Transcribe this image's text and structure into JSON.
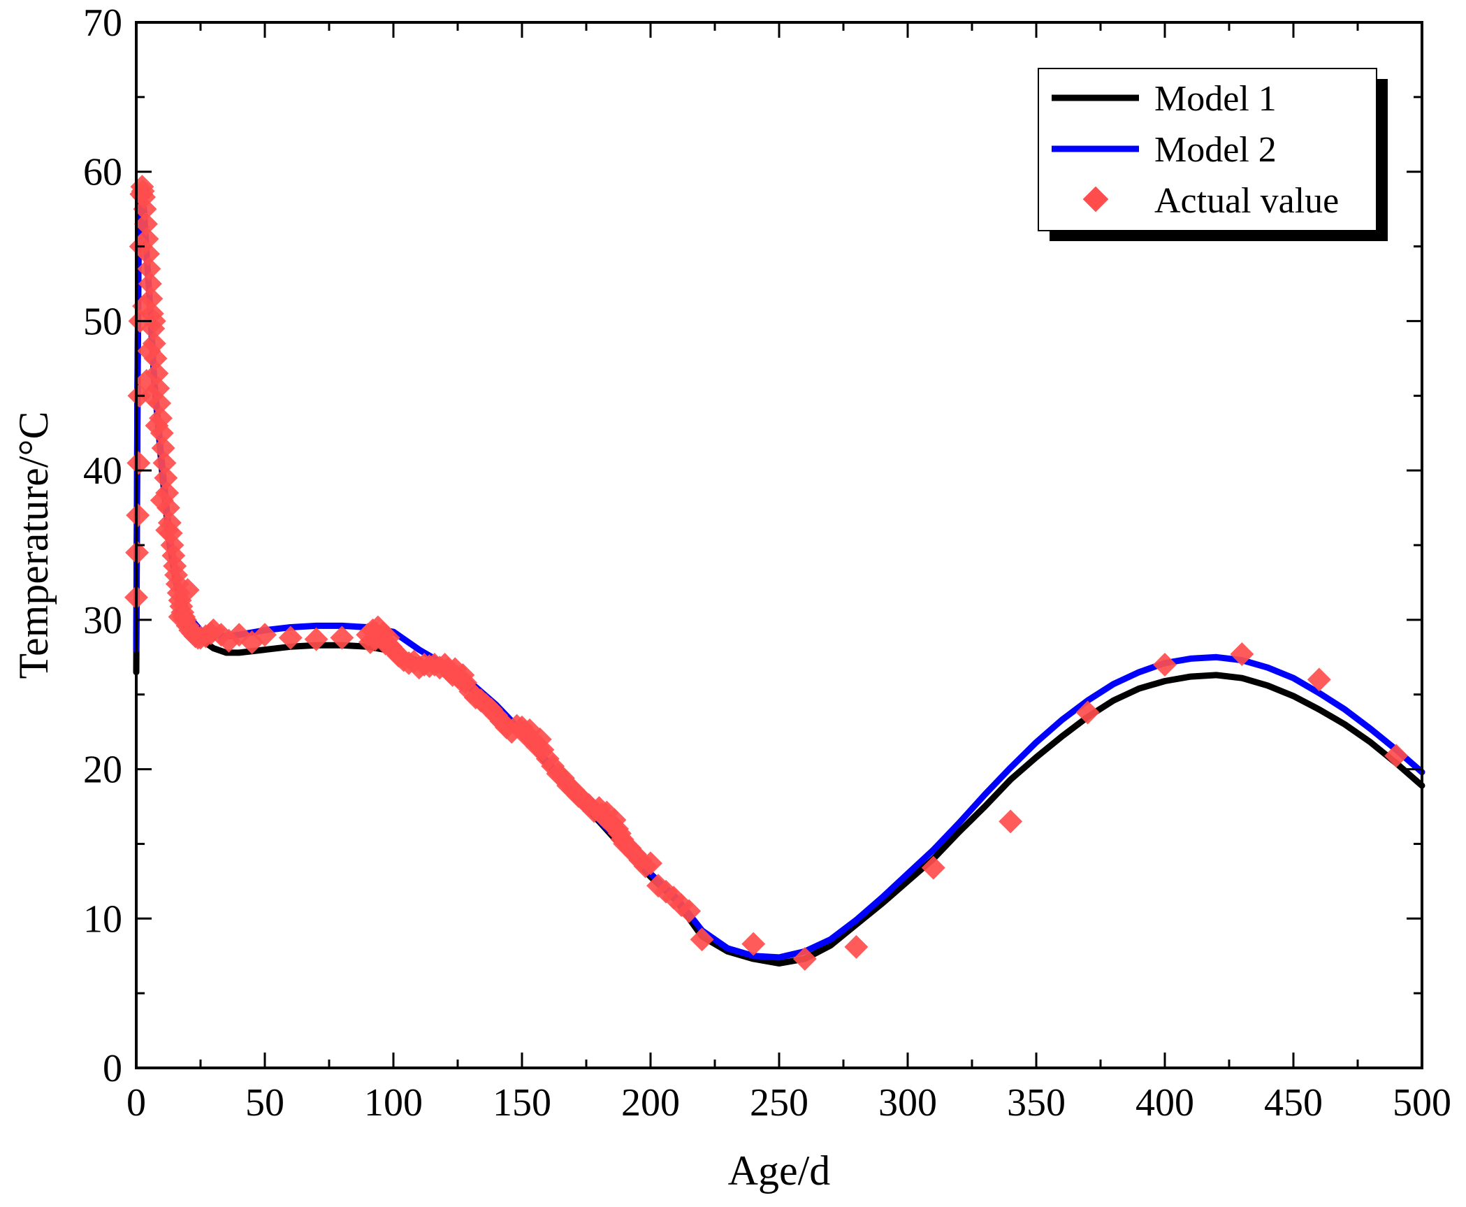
{
  "chart_data": {
    "type": "line",
    "title": "",
    "xlabel": "Age/d",
    "ylabel": "Temperature/°C",
    "xlim": [
      0,
      500
    ],
    "ylim": [
      0,
      70
    ],
    "x_ticks": [
      0,
      50,
      100,
      150,
      200,
      250,
      300,
      350,
      400,
      450,
      500
    ],
    "x_tick_labels": [
      "0",
      "50",
      "100",
      "150",
      "200",
      "250",
      "300",
      "350",
      "400",
      "450",
      "500"
    ],
    "y_ticks": [
      0,
      10,
      20,
      30,
      40,
      50,
      60,
      70
    ],
    "y_tick_labels": [
      "0",
      "10",
      "20",
      "30",
      "40",
      "50",
      "60",
      "70"
    ],
    "grid": false,
    "legend_position": "top-right",
    "series": [
      {
        "name": "Model 1",
        "kind": "line",
        "color": "#000000",
        "points": [
          [
            0,
            26.5
          ],
          [
            0.5,
            45
          ],
          [
            1,
            57
          ],
          [
            2,
            58.5
          ],
          [
            3,
            57
          ],
          [
            5,
            52
          ],
          [
            7,
            46
          ],
          [
            10,
            40
          ],
          [
            13,
            35
          ],
          [
            16,
            32
          ],
          [
            20,
            30
          ],
          [
            25,
            28.7
          ],
          [
            30,
            28.1
          ],
          [
            35,
            27.8
          ],
          [
            40,
            27.8
          ],
          [
            50,
            28
          ],
          [
            60,
            28.2
          ],
          [
            70,
            28.3
          ],
          [
            80,
            28.3
          ],
          [
            90,
            28.2
          ],
          [
            100,
            27.9
          ],
          [
            110,
            27.2
          ],
          [
            120,
            26.5
          ],
          [
            125,
            26.1
          ],
          [
            130,
            25.4
          ],
          [
            140,
            23.8
          ],
          [
            150,
            22.3
          ],
          [
            160,
            20.3
          ],
          [
            170,
            18.3
          ],
          [
            180,
            16.5
          ],
          [
            190,
            14.6
          ],
          [
            200,
            12.8
          ],
          [
            210,
            11.2
          ],
          [
            220,
            8.8
          ],
          [
            230,
            7.8
          ],
          [
            240,
            7.3
          ],
          [
            250,
            7.0
          ],
          [
            260,
            7.3
          ],
          [
            270,
            8.2
          ],
          [
            280,
            9.6
          ],
          [
            290,
            11
          ],
          [
            300,
            12.5
          ],
          [
            310,
            14
          ],
          [
            320,
            15.8
          ],
          [
            330,
            17.5
          ],
          [
            340,
            19.3
          ],
          [
            350,
            20.8
          ],
          [
            360,
            22.2
          ],
          [
            370,
            23.5
          ],
          [
            380,
            24.6
          ],
          [
            390,
            25.4
          ],
          [
            400,
            25.9
          ],
          [
            410,
            26.2
          ],
          [
            420,
            26.3
          ],
          [
            430,
            26.1
          ],
          [
            440,
            25.6
          ],
          [
            450,
            24.9
          ],
          [
            460,
            24
          ],
          [
            470,
            23
          ],
          [
            480,
            21.8
          ],
          [
            490,
            20.4
          ],
          [
            500,
            18.9
          ]
        ]
      },
      {
        "name": "Model 2",
        "kind": "line",
        "color": "#0000ff",
        "points": [
          [
            0,
            28
          ],
          [
            0.5,
            46
          ],
          [
            1,
            57.5
          ],
          [
            2,
            59
          ],
          [
            3,
            57.5
          ],
          [
            5,
            52
          ],
          [
            7,
            46
          ],
          [
            10,
            40.5
          ],
          [
            13,
            35.5
          ],
          [
            16,
            32.5
          ],
          [
            20,
            30.3
          ],
          [
            25,
            29.3
          ],
          [
            30,
            29.0
          ],
          [
            35,
            28.9
          ],
          [
            40,
            29
          ],
          [
            50,
            29.3
          ],
          [
            60,
            29.5
          ],
          [
            70,
            29.6
          ],
          [
            80,
            29.6
          ],
          [
            90,
            29.5
          ],
          [
            100,
            29.2
          ],
          [
            110,
            28
          ],
          [
            120,
            27
          ],
          [
            125,
            26.5
          ],
          [
            130,
            25.8
          ],
          [
            140,
            24.3
          ],
          [
            150,
            22.5
          ],
          [
            160,
            20.5
          ],
          [
            170,
            18.5
          ],
          [
            180,
            16.6
          ],
          [
            190,
            14.8
          ],
          [
            200,
            13
          ],
          [
            210,
            11.4
          ],
          [
            220,
            9.2
          ],
          [
            230,
            8.0
          ],
          [
            240,
            7.5
          ],
          [
            250,
            7.4
          ],
          [
            260,
            7.8
          ],
          [
            270,
            8.6
          ],
          [
            280,
            9.9
          ],
          [
            290,
            11.4
          ],
          [
            300,
            13.0
          ],
          [
            310,
            14.6
          ],
          [
            320,
            16.4
          ],
          [
            330,
            18.3
          ],
          [
            340,
            20.1
          ],
          [
            350,
            21.8
          ],
          [
            360,
            23.3
          ],
          [
            370,
            24.6
          ],
          [
            380,
            25.7
          ],
          [
            390,
            26.5
          ],
          [
            400,
            27.1
          ],
          [
            410,
            27.4
          ],
          [
            420,
            27.5
          ],
          [
            430,
            27.3
          ],
          [
            440,
            26.8
          ],
          [
            450,
            26.1
          ],
          [
            460,
            25.1
          ],
          [
            470,
            24
          ],
          [
            480,
            22.7
          ],
          [
            490,
            21.3
          ],
          [
            500,
            19.8
          ]
        ]
      },
      {
        "name": "Actual value",
        "kind": "scatter",
        "color": "#ff4d4d",
        "points": [
          [
            0,
            31.5
          ],
          [
            0.3,
            34.5
          ],
          [
            0.6,
            37
          ],
          [
            0.9,
            40.5
          ],
          [
            1.2,
            45
          ],
          [
            1.5,
            50
          ],
          [
            1.8,
            55
          ],
          [
            2,
            58.5
          ],
          [
            2.3,
            59
          ],
          [
            2.6,
            58.7
          ],
          [
            3,
            58.3
          ],
          [
            3.4,
            57.5
          ],
          [
            3.8,
            56.5
          ],
          [
            4.2,
            55.5
          ],
          [
            4.6,
            54.5
          ],
          [
            5,
            53.5
          ],
          [
            5.4,
            52.5
          ],
          [
            5.8,
            51.5
          ],
          [
            6.2,
            50.5
          ],
          [
            6.6,
            49.5
          ],
          [
            7,
            48.5
          ],
          [
            7.5,
            47.5
          ],
          [
            8,
            46.5
          ],
          [
            8.5,
            45.5
          ],
          [
            9,
            44.5
          ],
          [
            9.5,
            43.5
          ],
          [
            10,
            42.5
          ],
          [
            10.5,
            41.5
          ],
          [
            11,
            40.5
          ],
          [
            11.5,
            39.5
          ],
          [
            12,
            38.5
          ],
          [
            12.5,
            37.5
          ],
          [
            13,
            36.5
          ],
          [
            13.5,
            35.8
          ],
          [
            14,
            35
          ],
          [
            14.5,
            34.3
          ],
          [
            15,
            33.6
          ],
          [
            15.5,
            33
          ],
          [
            16,
            32.4
          ],
          [
            16.5,
            31.8
          ],
          [
            17,
            31.3
          ],
          [
            17.5,
            30.9
          ],
          [
            18,
            30.5
          ],
          [
            18.5,
            30.2
          ],
          [
            19,
            30
          ],
          [
            20,
            29.6
          ],
          [
            21,
            29.3
          ],
          [
            22,
            29.1
          ],
          [
            23,
            28.9
          ],
          [
            24,
            28.8
          ],
          [
            25,
            28.8
          ],
          [
            27,
            28.9
          ],
          [
            29,
            29.1
          ],
          [
            17,
            30.2
          ],
          [
            20,
            32
          ],
          [
            5,
            48
          ],
          [
            7,
            50
          ],
          [
            6,
            45
          ],
          [
            8,
            43
          ],
          [
            4,
            46
          ],
          [
            3,
            51
          ],
          [
            10,
            38
          ],
          [
            12,
            36
          ],
          [
            30,
            29.3
          ],
          [
            33,
            29
          ],
          [
            36,
            28.6
          ],
          [
            40,
            29
          ],
          [
            45,
            28.5
          ],
          [
            50,
            29
          ],
          [
            60,
            28.8
          ],
          [
            70,
            28.7
          ],
          [
            80,
            28.8
          ],
          [
            90,
            29
          ],
          [
            91,
            28.5
          ],
          [
            92,
            29.3
          ],
          [
            93,
            28.7
          ],
          [
            94,
            29.5
          ],
          [
            95,
            28.9
          ],
          [
            96,
            29.1
          ],
          [
            97,
            28.4
          ],
          [
            98,
            28.8
          ],
          [
            99,
            28.2
          ],
          [
            100,
            28
          ],
          [
            102,
            27.6
          ],
          [
            104,
            27.3
          ],
          [
            106,
            27.1
          ],
          [
            108,
            27.2
          ],
          [
            110,
            26.8
          ],
          [
            112,
            27
          ],
          [
            114,
            26.9
          ],
          [
            116,
            27
          ],
          [
            118,
            26.8
          ],
          [
            120,
            27
          ],
          [
            121,
            26.7
          ],
          [
            122,
            26.5
          ],
          [
            123,
            26.3
          ],
          [
            124,
            26.7
          ],
          [
            125,
            26.2
          ],
          [
            126,
            26.0
          ],
          [
            127,
            26.3
          ],
          [
            128,
            25.8
          ],
          [
            130,
            25.2
          ],
          [
            132,
            24.8
          ],
          [
            134,
            24.6
          ],
          [
            136,
            24.3
          ],
          [
            138,
            24
          ],
          [
            140,
            23.6
          ],
          [
            142,
            23.2
          ],
          [
            144,
            22.8
          ],
          [
            146,
            22.5
          ],
          [
            148,
            22.9
          ],
          [
            150,
            22.8
          ],
          [
            151,
            22.5
          ],
          [
            152,
            22.2
          ],
          [
            153,
            22.6
          ],
          [
            154,
            22
          ],
          [
            155,
            21.8
          ],
          [
            156,
            21.5
          ],
          [
            157,
            22
          ],
          [
            158,
            21.3
          ],
          [
            160,
            20.7
          ],
          [
            162,
            20.2
          ],
          [
            164,
            19.7
          ],
          [
            166,
            19.4
          ],
          [
            168,
            18.9
          ],
          [
            170,
            18.6
          ],
          [
            172,
            18.2
          ],
          [
            174,
            17.9
          ],
          [
            176,
            17.6
          ],
          [
            178,
            17.2
          ],
          [
            180,
            17.4
          ],
          [
            181,
            17
          ],
          [
            182,
            16.8
          ],
          [
            183,
            17.1
          ],
          [
            184,
            16.5
          ],
          [
            185,
            16.3
          ],
          [
            186,
            16.6
          ],
          [
            187,
            16
          ],
          [
            188,
            15.7
          ],
          [
            189,
            15.3
          ],
          [
            190,
            15.0
          ],
          [
            192,
            14.7
          ],
          [
            194,
            14.3
          ],
          [
            196,
            13.9
          ],
          [
            198,
            13.5
          ],
          [
            200,
            13.7
          ],
          [
            203,
            12.2
          ],
          [
            206,
            11.8
          ],
          [
            209,
            11.4
          ],
          [
            212,
            10.9
          ],
          [
            215,
            10.5
          ],
          [
            220,
            8.6
          ],
          [
            240,
            8.3
          ],
          [
            260,
            7.3
          ],
          [
            280,
            8.1
          ],
          [
            310,
            13.4
          ],
          [
            340,
            16.5
          ],
          [
            370,
            23.8
          ],
          [
            400,
            27
          ],
          [
            430,
            27.7
          ],
          [
            460,
            26
          ],
          [
            490,
            20.9
          ]
        ]
      }
    ]
  }
}
